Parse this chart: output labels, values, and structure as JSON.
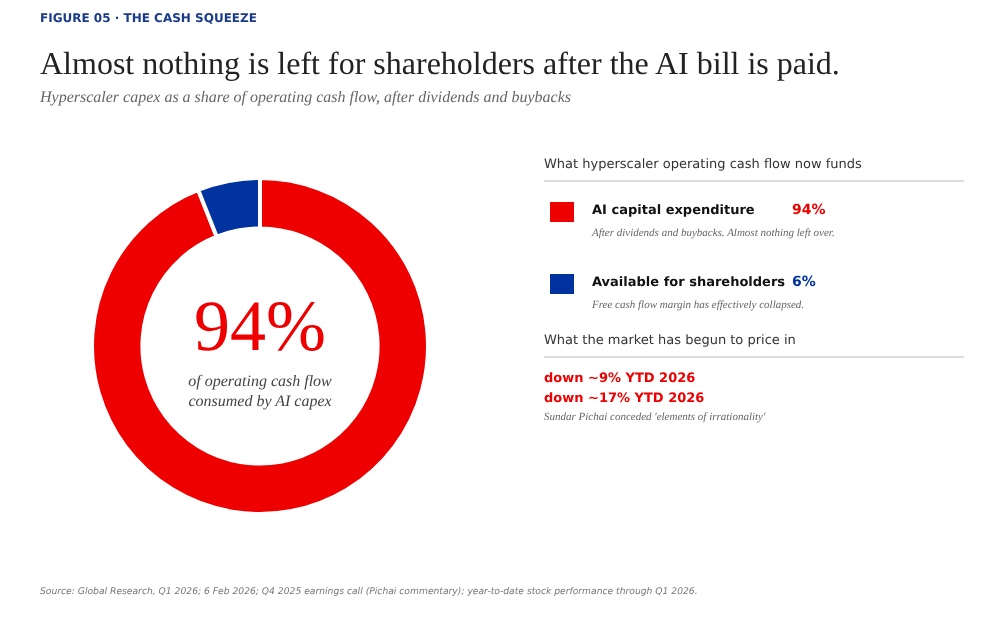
{
  "chart_data": {
    "type": "donut",
    "title": "Almost nothing is left for shareholders after the AI bill is paid.",
    "subtitle": "Hyperscaler capex as a share of operating cash flow, after dividends and buybacks",
    "categories": [
      "AI capital expenditure",
      "Available for shareholders"
    ],
    "values": [
      94,
      6
    ],
    "colors": [
      "#ee0000",
      "#0033a0"
    ],
    "value_labels": [
      "94%",
      "6%"
    ],
    "legend": "right",
    "legend_title": "What hyperscaler operating cash flow now funds",
    "annotations": [
      "FIGURE 05 · THE CASH SQUEEZE",
      "94%",
      "of operating cash flow consumed by AI capex",
      "After dividends and buybacks. Almost nothing left over.",
      "Free cash flow margin has effectively collapsed.",
      "What the market has begun to price in",
      "down ~9% YTD 2026",
      "down ~17% YTD 2026",
      "Sundar Pichai conceded 'elements of irrationality'",
      "Source: Global Research, Q1 2026; 6 Feb 2026; Q4 2025 earnings call (Pichai commentary); year-to-date stock performance through Q1 2026."
    ]
  }
}
